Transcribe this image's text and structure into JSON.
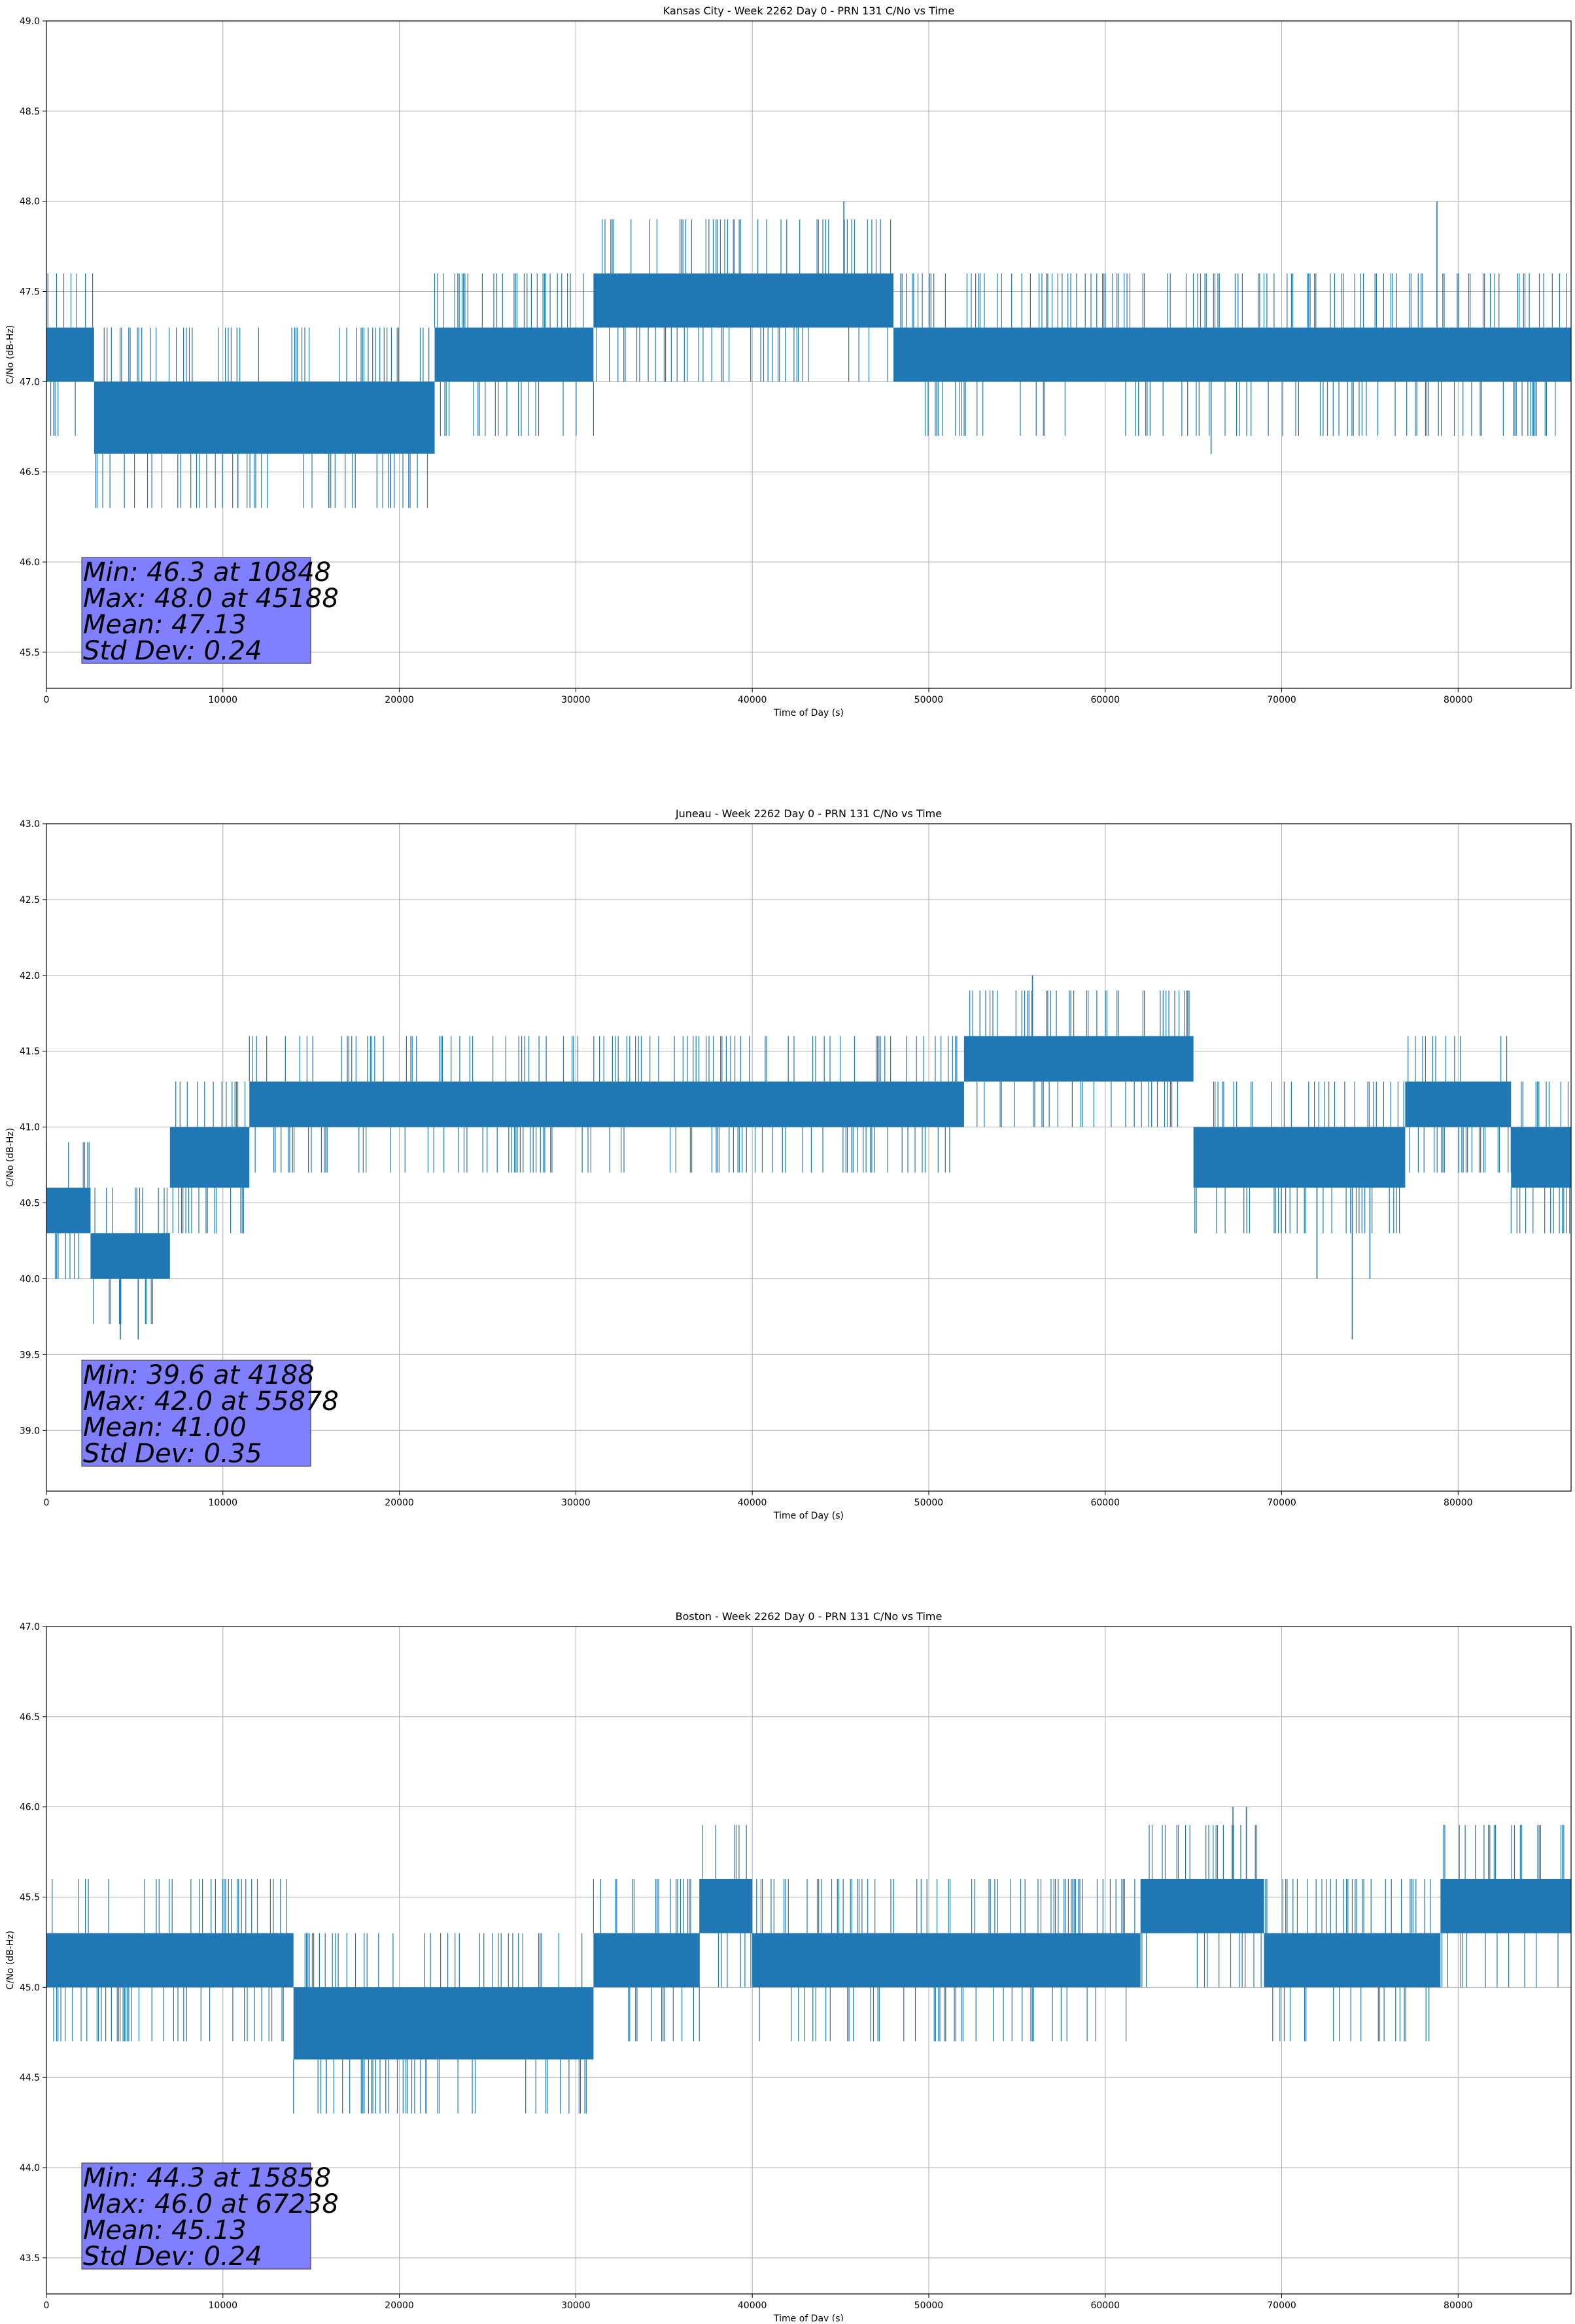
{
  "figure": {
    "line_color": "#1f77b4",
    "grid_color": "#b0b0b0",
    "statbox_color": "#8080ff"
  },
  "chart_data": [
    {
      "type": "line",
      "title": "Kansas City - Week 2262 Day 0 - PRN 131 C/No vs Time",
      "xlabel": "Time of Day (s)",
      "ylabel": "C/No (dB-Hz)",
      "xlim": [
        0,
        86400
      ],
      "ylim": [
        45.3,
        49.0
      ],
      "xticks": [
        0,
        10000,
        20000,
        30000,
        40000,
        50000,
        60000,
        70000,
        80000
      ],
      "xtick_labels": [
        "0",
        "10000",
        "20000",
        "30000",
        "40000",
        "50000",
        "60000",
        "70000",
        "80000"
      ],
      "yticks": [
        45.5,
        46.0,
        46.5,
        47.0,
        47.5,
        48.0,
        48.5,
        49.0
      ],
      "ytick_labels": [
        "45.5",
        "46.0",
        "46.5",
        "47.0",
        "47.5",
        "48.0",
        "48.5",
        "49.0"
      ],
      "grid": true,
      "segments": [
        {
          "x": [
            0,
            2700
          ],
          "low": 47.0,
          "high": 47.3
        },
        {
          "x": [
            2700,
            22000
          ],
          "low": 46.6,
          "high": 47.0
        },
        {
          "x": [
            22000,
            31000
          ],
          "low": 47.0,
          "high": 47.3
        },
        {
          "x": [
            31000,
            48000
          ],
          "low": 47.3,
          "high": 47.6
        },
        {
          "x": [
            48000,
            86400
          ],
          "low": 47.0,
          "high": 47.3
        }
      ],
      "spikes": [
        {
          "x": 10848,
          "y": 46.3
        },
        {
          "x": 16000,
          "y": 46.3
        },
        {
          "x": 19500,
          "y": 46.3
        },
        {
          "x": 45188,
          "y": 48.0
        },
        {
          "x": 78800,
          "y": 48.0
        },
        {
          "x": 66000,
          "y": 46.6
        }
      ],
      "stats": [
        "Min: 46.3 at 10848",
        "Max: 48.0 at 45188",
        "Mean: 47.13",
        "Std Dev: 0.24"
      ]
    },
    {
      "type": "line",
      "title": "Juneau - Week 2262 Day 0 - PRN 131 C/No vs Time",
      "xlabel": "Time of Day (s)",
      "ylabel": "C/No (dB-Hz)",
      "xlim": [
        0,
        86400
      ],
      "ylim": [
        38.6,
        43.0
      ],
      "xticks": [
        0,
        10000,
        20000,
        30000,
        40000,
        50000,
        60000,
        70000,
        80000
      ],
      "xtick_labels": [
        "0",
        "10000",
        "20000",
        "30000",
        "40000",
        "50000",
        "60000",
        "70000",
        "80000"
      ],
      "yticks": [
        39.0,
        39.5,
        40.0,
        40.5,
        41.0,
        41.5,
        42.0,
        42.5,
        43.0
      ],
      "ytick_labels": [
        "39.0",
        "39.5",
        "40.0",
        "40.5",
        "41.0",
        "41.5",
        "42.0",
        "42.5",
        "43.0"
      ],
      "grid": true,
      "segments": [
        {
          "x": [
            0,
            2500
          ],
          "low": 40.3,
          "high": 40.6
        },
        {
          "x": [
            2500,
            7000
          ],
          "low": 40.0,
          "high": 40.3
        },
        {
          "x": [
            7000,
            11500
          ],
          "low": 40.6,
          "high": 41.0
        },
        {
          "x": [
            11500,
            52000
          ],
          "low": 41.0,
          "high": 41.3
        },
        {
          "x": [
            52000,
            65000
          ],
          "low": 41.3,
          "high": 41.6
        },
        {
          "x": [
            65000,
            77000
          ],
          "low": 40.6,
          "high": 41.0
        },
        {
          "x": [
            77000,
            83000
          ],
          "low": 41.0,
          "high": 41.3
        },
        {
          "x": [
            83000,
            86400
          ],
          "low": 40.6,
          "high": 41.0
        }
      ],
      "spikes": [
        {
          "x": 4188,
          "y": 39.6
        },
        {
          "x": 5200,
          "y": 39.6
        },
        {
          "x": 55878,
          "y": 42.0
        },
        {
          "x": 74000,
          "y": 39.6
        },
        {
          "x": 72000,
          "y": 40.0
        },
        {
          "x": 75000,
          "y": 40.0
        }
      ],
      "stats": [
        "Min: 39.6 at 4188",
        "Max: 42.0 at 55878",
        "Mean: 41.00",
        "Std Dev: 0.35"
      ]
    },
    {
      "type": "line",
      "title": "Boston - Week 2262 Day 0 - PRN 131 C/No vs Time",
      "xlabel": "Time of Day (s)",
      "ylabel": "C/No (dB-Hz)",
      "xlim": [
        0,
        86400
      ],
      "ylim": [
        43.3,
        47.0
      ],
      "xticks": [
        0,
        10000,
        20000,
        30000,
        40000,
        50000,
        60000,
        70000,
        80000
      ],
      "xtick_labels": [
        "0",
        "10000",
        "20000",
        "30000",
        "40000",
        "50000",
        "60000",
        "70000",
        "80000"
      ],
      "yticks": [
        43.5,
        44.0,
        44.5,
        45.0,
        45.5,
        46.0,
        46.5,
        47.0
      ],
      "ytick_labels": [
        "43.5",
        "44.0",
        "44.5",
        "45.0",
        "45.5",
        "46.0",
        "46.5",
        "47.0"
      ],
      "grid": true,
      "segments": [
        {
          "x": [
            0,
            14000
          ],
          "low": 45.0,
          "high": 45.3
        },
        {
          "x": [
            14000,
            31000
          ],
          "low": 44.6,
          "high": 45.0
        },
        {
          "x": [
            31000,
            37000
          ],
          "low": 45.0,
          "high": 45.3
        },
        {
          "x": [
            37000,
            40000
          ],
          "low": 45.3,
          "high": 45.6
        },
        {
          "x": [
            40000,
            62000
          ],
          "low": 45.0,
          "high": 45.3
        },
        {
          "x": [
            62000,
            69000
          ],
          "low": 45.3,
          "high": 45.6
        },
        {
          "x": [
            69000,
            79000
          ],
          "low": 45.0,
          "high": 45.3
        },
        {
          "x": [
            79000,
            86400
          ],
          "low": 45.3,
          "high": 45.6
        }
      ],
      "spikes": [
        {
          "x": 15858,
          "y": 44.3
        },
        {
          "x": 18000,
          "y": 44.3
        },
        {
          "x": 21500,
          "y": 44.3
        },
        {
          "x": 67238,
          "y": 46.0
        },
        {
          "x": 68000,
          "y": 46.0
        }
      ],
      "stats": [
        "Min: 44.3 at 15858",
        "Max: 46.0 at 67238",
        "Mean: 45.13",
        "Std Dev: 0.24"
      ]
    }
  ]
}
